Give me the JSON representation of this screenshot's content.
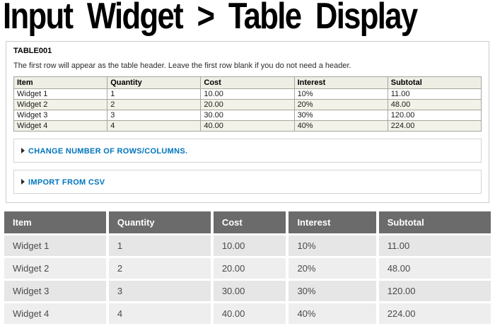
{
  "page": {
    "title": "Input Widget > Table Display"
  },
  "form": {
    "field_label": "TABLE001",
    "description": "The first row will appear as the table header. Leave the first row blank if you do not need a header.",
    "input_table": {
      "header_row": [
        "Item",
        "Quantity",
        "Cost",
        "Interest",
        "Subtotal"
      ],
      "rows": [
        [
          "Widget 1",
          "1",
          "10.00",
          "10%",
          "11.00"
        ],
        [
          "Widget 2",
          "2",
          "20.00",
          "20%",
          "48.00"
        ],
        [
          "Widget 3",
          "3",
          "30.00",
          "30%",
          "120.00"
        ],
        [
          "Widget 4",
          "4",
          "40.00",
          "40%",
          "224.00"
        ]
      ]
    },
    "collapsible_sections": [
      {
        "icon": "collapsed-triangle",
        "label": "CHANGE NUMBER OF ROWS/COLUMNS."
      },
      {
        "icon": "collapsed-triangle",
        "label": "IMPORT FROM CSV"
      }
    ]
  },
  "display_table": {
    "header": [
      "Item",
      "Quantity",
      "Cost",
      "Interest",
      "Subtotal"
    ],
    "rows": [
      [
        "Widget 1",
        "1",
        "10.00",
        "10%",
        "11.00"
      ],
      [
        "Widget 2",
        "2",
        "20.00",
        "20%",
        "48.00"
      ],
      [
        "Widget 3",
        "3",
        "30.00",
        "30%",
        "120.00"
      ],
      [
        "Widget 4",
        "4",
        "40.00",
        "40%",
        "224.00"
      ]
    ]
  },
  "colors": {
    "link_blue": "#0074bd",
    "display_header_bg": "#6b6b6b",
    "display_row_bg": "#e6e6e6",
    "display_row_alt_bg": "#eeeeee",
    "input_header_bg": "#eeeee4",
    "input_stripe_bg": "#f2f2e8",
    "input_border": "#a6a69e",
    "fieldset_border": "#cccccc"
  }
}
